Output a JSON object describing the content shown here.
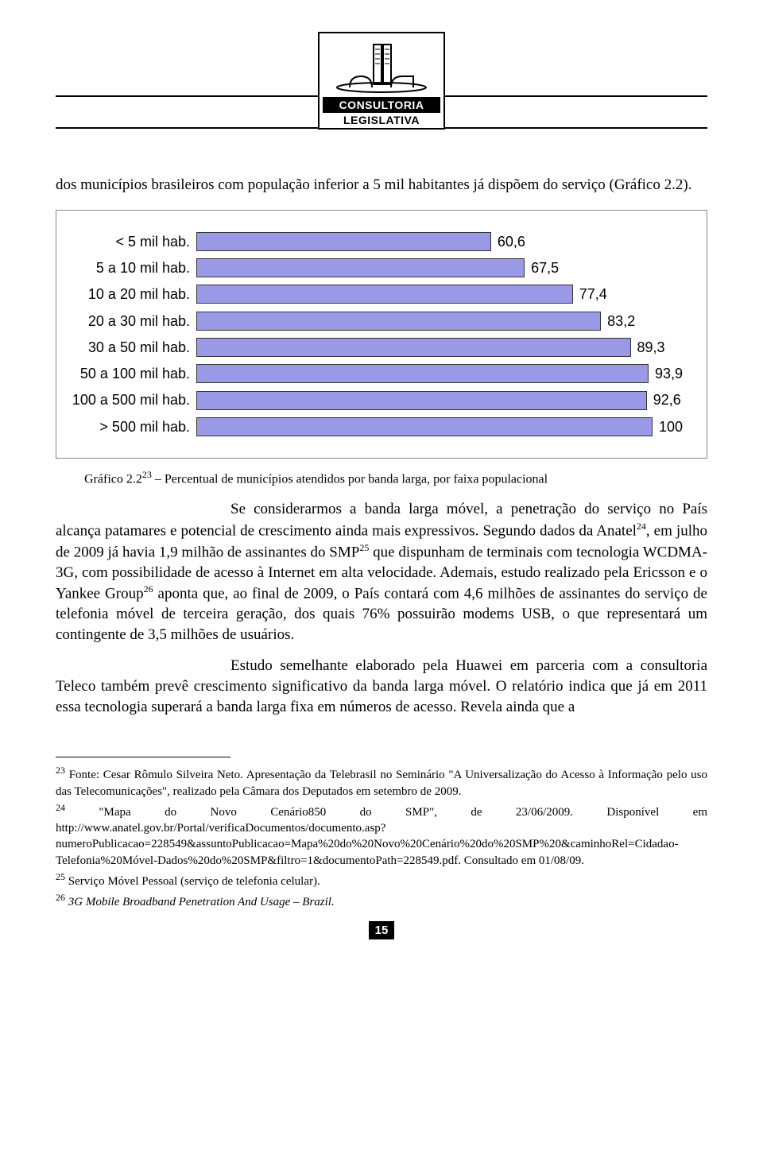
{
  "logo": {
    "line1": "CONSULTORIA",
    "line2": "LEGISLATIVA"
  },
  "intro_paragraph": "dos municípios brasileiros com população inferior a 5 mil habitantes já dispõem do serviço (Gráfico 2.2).",
  "chart": {
    "type": "bar-horizontal",
    "bar_color": "#9999e6",
    "bar_border": "#333333",
    "max_value": 100,
    "label_fontsize": 18,
    "value_fontsize": 18,
    "rows": [
      {
        "label": "< 5 mil hab.",
        "value": 60.6,
        "display": "60,6"
      },
      {
        "label": "5 a 10 mil hab.",
        "value": 67.5,
        "display": "67,5"
      },
      {
        "label": "10 a 20 mil hab.",
        "value": 77.4,
        "display": "77,4"
      },
      {
        "label": "20 a 30 mil hab.",
        "value": 83.2,
        "display": "83,2"
      },
      {
        "label": "30 a 50 mil hab.",
        "value": 89.3,
        "display": "89,3"
      },
      {
        "label": "50 a 100 mil hab.",
        "value": 93.9,
        "display": "93,9"
      },
      {
        "label": "100 a 500 mil hab.",
        "value": 92.6,
        "display": "92,6"
      },
      {
        "label": "> 500 mil hab.",
        "value": 100,
        "display": "100"
      }
    ]
  },
  "caption_prefix": "Gráfico 2.2",
  "caption_sup": "23",
  "caption_rest": " – Percentual de municípios atendidos por banda larga, por faixa populacional",
  "para2_a": "Se considerarmos a banda larga móvel, a penetração do serviço no País alcança patamares e potencial de crescimento ainda mais expressivos. Segundo dados da Anatel",
  "para2_sup1": "24",
  "para2_b": ", em julho de 2009 já havia 1,9 milhão de assinantes do SMP",
  "para2_sup2": "25",
  "para2_c": " que dispunham de terminais com tecnologia WCDMA-3G, com possibilidade de acesso à Internet em alta velocidade. Ademais, estudo realizado pela Ericsson e o Yankee Group",
  "para2_sup3": "26",
  "para2_d": " aponta que, ao final de 2009, o País contará com 4,6 milhões de assinantes do serviço de telefonia móvel de terceira geração, dos quais 76% possuirão modems USB, o que representará um contingente de 3,5 milhões de usuários.",
  "para3": "Estudo semelhante elaborado pela Huawei em parceria com a consultoria Teleco também prevê crescimento significativo da banda larga móvel. O relatório indica que já em 2011 essa tecnologia superará a banda larga fixa em números de acesso. Revela ainda que a",
  "footnotes": {
    "fn23_num": "23",
    "fn23": " Fonte: Cesar Rômulo Silveira Neto. Apresentação da Telebrasil no Seminário \"A Universalização do Acesso à Informação pelo uso das Telecomunicações\", realizado pela Câmara dos Deputados em setembro de 2009.",
    "fn24_num": "24",
    "fn24": " \"Mapa do Novo Cenário850 do SMP\", de 23/06/2009. Disponível em http://www.anatel.gov.br/Portal/verificaDocumentos/documento.asp?numeroPublicacao=228549&assuntoPublicacao=Mapa%20do%20Novo%20Cenário%20do%20SMP%20&caminhoRel=Cidadao-Telefonia%20Móvel-Dados%20do%20SMP&filtro=1&documentoPath=228549.pdf. Consultado em 01/08/09.",
    "fn25_num": "25",
    "fn25": " Serviço Móvel Pessoal (serviço de telefonia celular).",
    "fn26_num": "26",
    "fn26_italic": " 3G Mobile Broadband Penetration And Usage – Brazil."
  },
  "page_number": "15"
}
